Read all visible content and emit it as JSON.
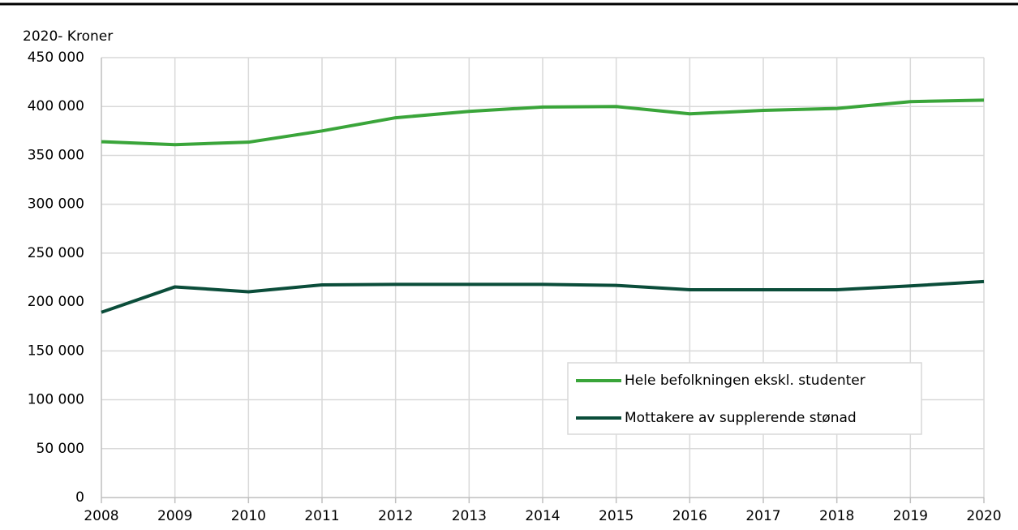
{
  "chart_data": {
    "type": "line",
    "y_axis_label": "2020- Kroner",
    "x": [
      2008,
      2009,
      2010,
      2011,
      2012,
      2013,
      2014,
      2015,
      2016,
      2017,
      2018,
      2019,
      2020
    ],
    "xlim": [
      2008,
      2020
    ],
    "xticks": [
      2008,
      2009,
      2010,
      2011,
      2012,
      2013,
      2014,
      2015,
      2016,
      2017,
      2018,
      2019,
      2020
    ],
    "ylim": [
      0,
      450000
    ],
    "yticks": [
      0,
      {
        "value": 50000,
        "label": "50 000"
      },
      {
        "value": 100000,
        "label": "100 000"
      },
      {
        "value": 150000,
        "label": "150 000"
      },
      {
        "value": 200000,
        "label": "200 000"
      },
      {
        "value": 250000,
        "label": "250 000"
      },
      {
        "value": 300000,
        "label": "300 000"
      },
      {
        "value": 350000,
        "label": "350 000"
      },
      {
        "value": 400000,
        "label": "400 000"
      },
      {
        "value": 450000,
        "label": "450 000"
      }
    ],
    "grid": true,
    "legend": "lower right",
    "series": [
      {
        "name": "Hele befolkningen ekskl. studenter",
        "color": "#3aa53a",
        "values": [
          364000,
          361000,
          363500,
          375000,
          388500,
          395000,
          399500,
          400000,
          392500,
          396000,
          398000,
          405000,
          406500
        ]
      },
      {
        "name": "Mottakere av supplerende stønad",
        "color": "#0b4d3a",
        "values": [
          189500,
          215500,
          210500,
          217500,
          218000,
          218000,
          218000,
          217000,
          212500,
          212500,
          212500,
          216500,
          221000
        ]
      }
    ]
  }
}
